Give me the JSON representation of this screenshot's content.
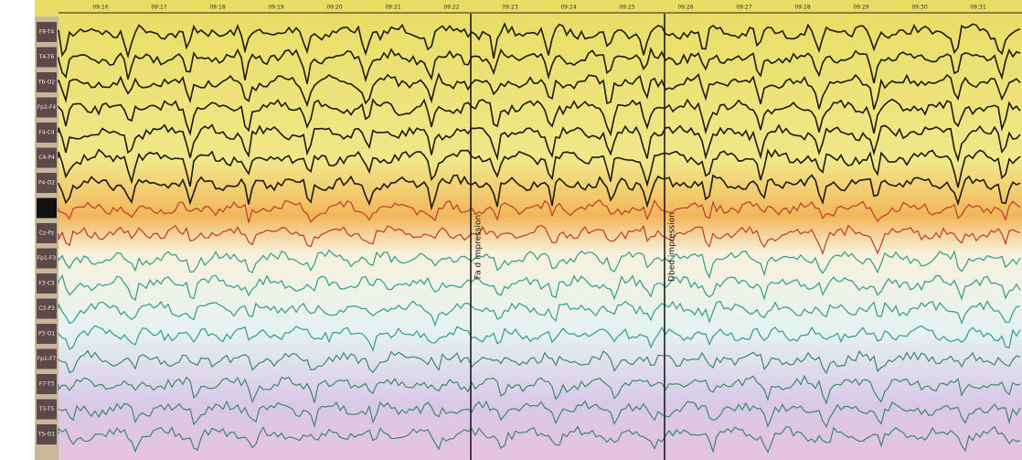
{
  "channels": [
    "F8-T4",
    "T4-T6",
    "T6-O2",
    "Fp2-F4",
    "F4-C4",
    "C4-P4",
    "P4-O2",
    "",
    "Cz-Pz",
    "Fp1-F3",
    "F3-C3",
    "C3-P3",
    "P3-O1",
    "Fp1-F7",
    "F7-T3",
    "T3-T5",
    "T5-O1"
  ],
  "timestamps": [
    "09:16",
    "09:17",
    "09:18",
    "09:19",
    "09:20",
    "09:21",
    "09:22",
    "09:23",
    "09:24",
    "09:25",
    "09:26",
    "09:27",
    "09:28",
    "09:29",
    "09:30",
    "09:31"
  ],
  "annotations": [
    "Fa d impression",
    "Dbed impression"
  ]
}
